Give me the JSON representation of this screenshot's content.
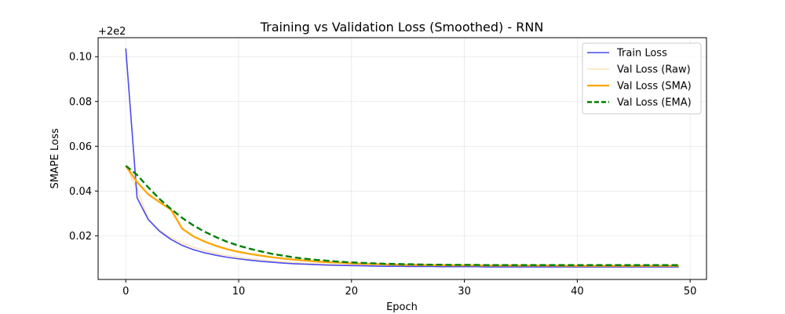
{
  "chart_data": {
    "type": "line",
    "title": "Training vs Validation Loss (Smoothed) - RNN",
    "xlabel": "Epoch",
    "ylabel": "SMAPE Loss",
    "offset_label": "+2e2",
    "xlim": [
      -2.45,
      51.45
    ],
    "ylim": [
      0.0005,
      0.1085
    ],
    "xticks": [
      0,
      10,
      20,
      30,
      40,
      50
    ],
    "yticks": [
      0.02,
      0.04,
      0.06,
      0.08,
      0.1
    ],
    "ytick_labels": [
      "0.02",
      "0.04",
      "0.06",
      "0.08",
      "0.10"
    ],
    "grid": true,
    "legend_position": "top-right",
    "x": [
      0,
      1,
      2,
      3,
      4,
      5,
      6,
      7,
      8,
      9,
      10,
      11,
      12,
      13,
      14,
      15,
      16,
      17,
      18,
      19,
      20,
      21,
      22,
      23,
      24,
      25,
      26,
      27,
      28,
      29,
      30,
      31,
      32,
      33,
      34,
      35,
      36,
      37,
      38,
      39,
      40,
      41,
      42,
      43,
      44,
      45,
      46,
      47,
      48,
      49
    ],
    "series": [
      {
        "name": "Train Loss",
        "color": "#4b4bea",
        "style": "solid",
        "values": [
          0.1037,
          0.037,
          0.0272,
          0.022,
          0.0184,
          0.0157,
          0.0138,
          0.0124,
          0.0113,
          0.0104,
          0.0097,
          0.0091,
          0.0086,
          0.0082,
          0.0078,
          0.0075,
          0.0073,
          0.0071,
          0.0069,
          0.0068,
          0.0067,
          0.0066,
          0.0065,
          0.0064,
          0.0064,
          0.0063,
          0.0063,
          0.0063,
          0.0062,
          0.0062,
          0.0062,
          0.0062,
          0.0061,
          0.0061,
          0.0061,
          0.0061,
          0.0061,
          0.0061,
          0.0061,
          0.0061,
          0.0061,
          0.0061,
          0.0061,
          0.0061,
          0.0061,
          0.0061,
          0.0061,
          0.0061,
          0.0061,
          0.0061
        ]
      },
      {
        "name": "Val Loss (Raw)",
        "color": "#fde3bb",
        "style": "solid",
        "values": [
          0.0513,
          0.041,
          0.0275,
          0.0225,
          0.0192,
          0.0168,
          0.0149,
          0.0134,
          0.0121,
          0.0112,
          0.0104,
          0.0097,
          0.0092,
          0.0087,
          0.0083,
          0.008,
          0.0077,
          0.0075,
          0.0073,
          0.0071,
          0.007,
          0.0069,
          0.0068,
          0.0067,
          0.0066,
          0.0066,
          0.0065,
          0.0065,
          0.0065,
          0.0064,
          0.0064,
          0.0064,
          0.0064,
          0.0064,
          0.0064,
          0.0063,
          0.0063,
          0.0063,
          0.0063,
          0.0063,
          0.0063,
          0.0063,
          0.0063,
          0.0063,
          0.0063,
          0.0063,
          0.0063,
          0.0063,
          0.0063,
          0.0063
        ]
      },
      {
        "name": "Val Loss (SMA)",
        "color": "#ffa500",
        "style": "solid",
        "values": [
          0.0513,
          0.044,
          0.0385,
          0.035,
          0.0317,
          0.0232,
          0.0197,
          0.0174,
          0.0155,
          0.014,
          0.0128,
          0.0119,
          0.0111,
          0.0104,
          0.0098,
          0.0093,
          0.0089,
          0.0085,
          0.0082,
          0.008,
          0.0077,
          0.0075,
          0.0074,
          0.0072,
          0.0071,
          0.007,
          0.007,
          0.0069,
          0.0069,
          0.0068,
          0.0068,
          0.0068,
          0.0067,
          0.0067,
          0.0067,
          0.0067,
          0.0067,
          0.0067,
          0.0067,
          0.0066,
          0.0066,
          0.0066,
          0.0066,
          0.0066,
          0.0066,
          0.0066,
          0.0066,
          0.0066,
          0.0066,
          0.0066
        ]
      },
      {
        "name": "Val Loss (EMA)",
        "color": "#008000",
        "style": "dashed",
        "values": [
          0.0513,
          0.0472,
          0.0416,
          0.0364,
          0.032,
          0.028,
          0.0246,
          0.0218,
          0.0194,
          0.0173,
          0.0156,
          0.0142,
          0.013,
          0.0119,
          0.0111,
          0.0103,
          0.0097,
          0.0092,
          0.0088,
          0.0084,
          0.0081,
          0.0079,
          0.0077,
          0.0075,
          0.0074,
          0.0073,
          0.0072,
          0.0071,
          0.0071,
          0.007,
          0.007,
          0.007,
          0.0069,
          0.0069,
          0.0069,
          0.0069,
          0.0069,
          0.0069,
          0.0069,
          0.0069,
          0.0069,
          0.0069,
          0.0069,
          0.0069,
          0.0069,
          0.0069,
          0.0069,
          0.0069,
          0.0069,
          0.0069
        ]
      }
    ]
  }
}
